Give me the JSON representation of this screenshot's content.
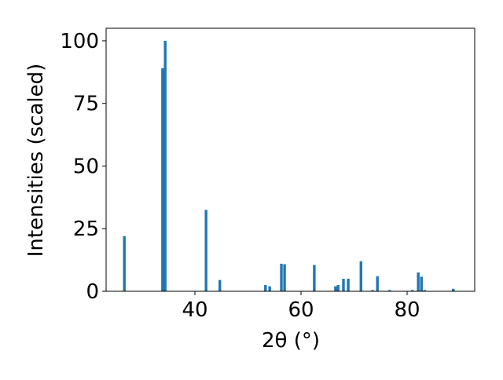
{
  "chart_data": {
    "type": "bar",
    "x": [
      26.7,
      33.9,
      34.4,
      42.1,
      44.7,
      53.3,
      54.1,
      56.3,
      56.9,
      62.5,
      66.5,
      67.0,
      68.0,
      68.9,
      71.3,
      73.5,
      74.4,
      76.7,
      81.0,
      82.1,
      82.7,
      83.3,
      88.7
    ],
    "values": [
      22,
      89,
      100,
      32.5,
      4.5,
      2.5,
      2,
      11,
      10.8,
      10.5,
      2,
      2.5,
      5,
      5,
      12,
      0.5,
      6,
      0.5,
      0.5,
      7.5,
      5.8,
      0.5,
      1
    ],
    "color": "#1f77b4",
    "xlabel": "2θ (°)",
    "ylabel": "Intensities (scaled)",
    "xlim": [
      23.26,
      92.74
    ],
    "ylim": [
      0,
      105
    ],
    "xticks": [
      40,
      60,
      80
    ],
    "yticks": [
      0,
      25,
      50,
      75,
      100
    ]
  }
}
